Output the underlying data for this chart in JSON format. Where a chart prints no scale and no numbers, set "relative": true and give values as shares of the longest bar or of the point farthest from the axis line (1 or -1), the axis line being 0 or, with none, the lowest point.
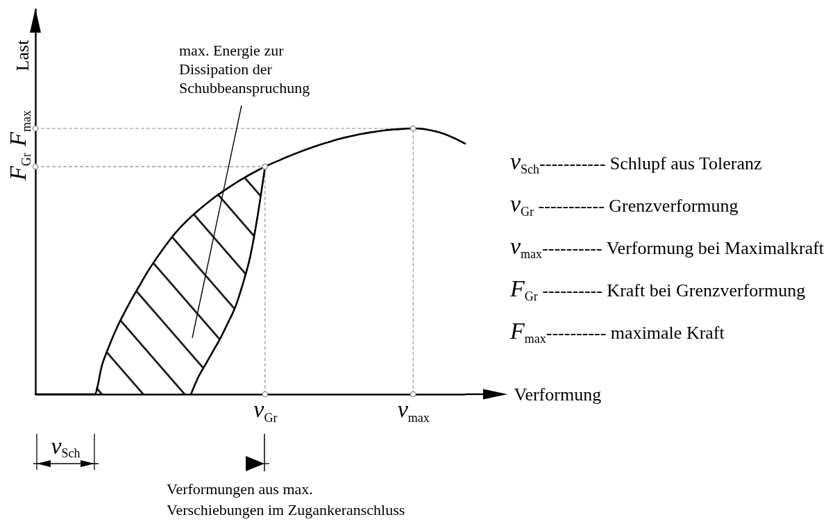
{
  "chart_data": {
    "type": "line",
    "relative": true,
    "xlabel": "Verformung",
    "ylabel": "Last",
    "categories": [
      null,
      null,
      null,
      null,
      null,
      null,
      null,
      null,
      null,
      null,
      null,
      null,
      null,
      null,
      null,
      null,
      null,
      null,
      null,
      null,
      null,
      null,
      null,
      null,
      null,
      null,
      null,
      null,
      null,
      null,
      null,
      "v$_{Gr}$",
      null,
      null,
      null,
      null,
      null,
      null,
      null,
      null,
      null,
      null,
      null,
      null,
      null,
      null,
      null,
      null,
      null,
      null,
      null,
      "v$_{max}$",
      null,
      null,
      null,
      null,
      null,
      null,
      null
    ],
    "series": [
      {
        "color": "#000000",
        "line_style": "solid",
        "values": [
          0,
          0,
          0,
          0,
          0,
          0,
          0,
          0,
          0,
          0.11,
          0.185,
          0.25,
          0.306,
          0.358,
          0.406,
          0.454,
          0.497,
          0.537,
          0.575,
          0.61,
          0.64,
          0.667,
          0.692,
          0.715,
          0.737,
          0.757,
          0.776,
          0.794,
          0.811,
          0.827,
          0.842,
          0.856,
          0.869,
          0.881,
          0.893,
          0.904,
          0.915,
          0.925,
          0.935,
          0.944,
          0.952,
          0.96,
          0.967,
          0.973,
          0.979,
          0.984,
          0.988,
          0.992,
          0.995,
          0.997,
          0.999,
          1,
          0.999,
          0.995,
          0.989,
          0.981,
          0.97,
          0.957,
          0.943
        ],
        "upper": [
          null,
          null,
          null,
          null,
          null,
          null,
          null,
          null,
          0,
          0.11,
          0.185,
          0.25,
          0.306,
          0.358,
          0.406,
          0.454,
          0.497,
          0.537,
          0.575,
          0.61,
          0.64,
          0.667,
          0.692,
          0.715,
          0.737,
          0.757,
          0.776,
          0.794,
          0.811,
          0.827,
          0.842,
          0.856,
          null,
          null,
          null,
          null,
          null,
          null,
          null,
          null,
          null,
          null,
          null,
          null,
          null,
          null,
          null,
          null,
          null,
          null,
          null,
          null,
          null,
          null,
          null,
          null,
          null,
          null,
          null
        ],
        "lower": [
          null,
          null,
          null,
          null,
          null,
          null,
          null,
          null,
          0,
          0,
          0,
          0,
          0,
          0,
          0,
          0,
          0,
          0,
          0,
          0,
          0,
          0,
          0.065,
          0.114,
          0.163,
          0.212,
          0.269,
          0.329,
          0.415,
          0.518,
          0.671,
          0.856,
          null,
          null,
          null,
          null,
          null,
          null,
          null,
          null,
          null,
          null,
          null,
          null,
          null,
          null,
          null,
          null,
          null,
          null,
          null,
          null,
          null,
          null,
          null,
          null,
          null,
          null,
          null
        ]
      },
      {
        "color": "#000000",
        "line_style": "solid",
        "values": [
          null,
          null,
          null,
          null,
          null,
          null,
          null,
          null,
          null,
          null,
          null,
          null,
          null,
          null,
          null,
          null,
          null,
          null,
          null,
          null,
          null,
          0,
          0.065,
          0.114,
          0.163,
          0.212,
          0.269,
          0.329,
          0.415,
          0.518,
          0.671,
          0.856,
          null,
          null,
          null,
          null,
          null,
          null,
          null,
          null,
          null,
          null,
          null,
          null,
          null,
          null,
          null,
          null,
          null,
          null,
          null,
          null,
          null,
          null,
          null,
          null,
          null,
          null,
          null
        ]
      },
      {
        "name": "F$_{max}$",
        "color": "#8c8c8c",
        "line_style": "dashed",
        "values": [
          1,
          1,
          1,
          1,
          1,
          1,
          1,
          1,
          1,
          1,
          1,
          1,
          1,
          1,
          1,
          1,
          1,
          1,
          1,
          1,
          1,
          1,
          1,
          1,
          1,
          1,
          1,
          1,
          1,
          1,
          1,
          1,
          1,
          1,
          1,
          1,
          1,
          1,
          1,
          1,
          1,
          1,
          1,
          1,
          1,
          1,
          1,
          1,
          1,
          1,
          1,
          1,
          null,
          null,
          null,
          null,
          null,
          null,
          null
        ]
      },
      {
        "name": "F$_{Gr}$",
        "color": "#8c8c8c",
        "line_style": "dashed",
        "values": [
          0.856,
          0.856,
          0.856,
          0.856,
          0.856,
          0.856,
          0.856,
          0.856,
          0.856,
          0.856,
          0.856,
          0.856,
          0.856,
          0.856,
          0.856,
          0.856,
          0.856,
          0.856,
          0.856,
          0.856,
          0.856,
          0.856,
          0.856,
          0.856,
          0.856,
          0.856,
          0.856,
          0.856,
          0.856,
          0.856,
          0.856,
          0.856,
          null,
          null,
          null,
          null,
          null,
          null,
          null,
          null,
          null,
          null,
          null,
          null,
          null,
          null,
          null,
          null,
          null,
          null,
          null,
          null,
          null,
          null,
          null,
          null,
          null,
          null,
          null
        ]
      },
      {
        "color": "#8c8c8c",
        "line_style": "dashed",
        "x": [
          "v$_{Gr}$",
          "v$_{Gr}$"
        ],
        "values": [
          0,
          0.856
        ]
      },
      {
        "color": "#8c8c8c",
        "line_style": "dashed",
        "x": [
          "v$_{max}$",
          "v$_{max}$"
        ],
        "values": [
          0,
          1
        ]
      },
      {
        "type": "scatter",
        "color": "#8c8c8c",
        "marker": "circle",
        "values": [
          1,
          null,
          null,
          null,
          null,
          null,
          null,
          null,
          null,
          null,
          null,
          null,
          null,
          null,
          null,
          null,
          null,
          null,
          null,
          null,
          null,
          null,
          null,
          null,
          null,
          null,
          null,
          null,
          null,
          null,
          null,
          null,
          null,
          null,
          null,
          null,
          null,
          null,
          null,
          null,
          null,
          null,
          null,
          null,
          null,
          null,
          null,
          null,
          null,
          null,
          null,
          1,
          null,
          null,
          null,
          null,
          null,
          null,
          null
        ]
      },
      {
        "type": "scatter",
        "color": "#8c8c8c",
        "marker": "circle",
        "values": [
          0.856,
          null,
          null,
          null,
          null,
          null,
          null,
          null,
          null,
          null,
          null,
          null,
          null,
          null,
          null,
          null,
          null,
          null,
          null,
          null,
          null,
          null,
          null,
          null,
          null,
          null,
          null,
          null,
          null,
          null,
          null,
          0.856,
          null,
          null,
          null,
          null,
          null,
          null,
          null,
          null,
          null,
          null,
          null,
          null,
          null,
          null,
          null,
          null,
          null,
          null,
          null,
          null,
          null,
          null,
          null,
          null,
          null,
          null,
          null
        ]
      },
      {
        "type": "scatter",
        "color": "#8c8c8c",
        "marker": "circle",
        "values": [
          null,
          null,
          null,
          null,
          null,
          null,
          null,
          null,
          null,
          null,
          null,
          null,
          null,
          null,
          null,
          null,
          null,
          null,
          null,
          null,
          null,
          null,
          null,
          null,
          null,
          null,
          null,
          null,
          null,
          null,
          null,
          0,
          null,
          null,
          null,
          null,
          null,
          null,
          null,
          null,
          null,
          null,
          null,
          null,
          null,
          null,
          null,
          null,
          null,
          null,
          null,
          0,
          null,
          null,
          null,
          null,
          null,
          null,
          null
        ]
      }
    ],
    "annotations": [
      "max. Energie zur\nDissipation der\nSchubbeanspruchung",
      "v$_{Sch}$----------- Schlupf aus Toleranz",
      "v$_{Gr}$ ----------- Grenzverformung",
      "v$_{max}$---------- Verformung bei Maximalkraft",
      "F$_{Gr}$ ---------- Kraft bei Grenzverformung",
      "F$_{max}$---------- maximale Kraft",
      "v$_{Sch}$",
      "Verformungen aus max.\nVerschiebungen im Zugankeranschluss"
    ]
  }
}
